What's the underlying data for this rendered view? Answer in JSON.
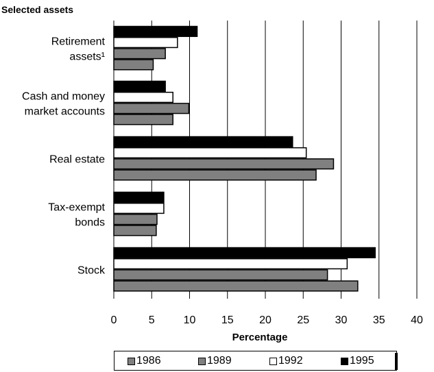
{
  "chart_data": {
    "type": "bar",
    "orientation": "horizontal",
    "title": "Selected assets",
    "xlabel": "Percentage",
    "ylabel": "",
    "xlim": [
      0,
      40
    ],
    "xticks": [
      0,
      5,
      10,
      15,
      20,
      25,
      30,
      35,
      40
    ],
    "grid": "vertical",
    "legend_placement": "bottom",
    "categories": [
      [
        "Retirement",
        "assets¹"
      ],
      [
        "Cash and money",
        "market accounts"
      ],
      [
        "Real estate"
      ],
      [
        "Tax-exempt",
        "bonds"
      ],
      [
        "Stock"
      ]
    ],
    "series": [
      {
        "name": "1995",
        "color": "#000000",
        "values": [
          11.0,
          6.8,
          23.6,
          6.6,
          34.5
        ]
      },
      {
        "name": "1992",
        "color": "#ffffff",
        "values": [
          8.4,
          7.8,
          25.4,
          6.6,
          30.8
        ]
      },
      {
        "name": "1989",
        "color": "#808080",
        "values": [
          6.8,
          9.9,
          29.0,
          5.7,
          28.2
        ]
      },
      {
        "name": "1986",
        "color": "#808080",
        "values": [
          5.2,
          7.8,
          26.7,
          5.6,
          32.2
        ]
      }
    ],
    "legend": [
      {
        "name": "1986",
        "color": "#808080"
      },
      {
        "name": "1989",
        "color": "#808080"
      },
      {
        "name": "1992",
        "color": "#ffffff"
      },
      {
        "name": "1995",
        "color": "#000000"
      }
    ]
  }
}
